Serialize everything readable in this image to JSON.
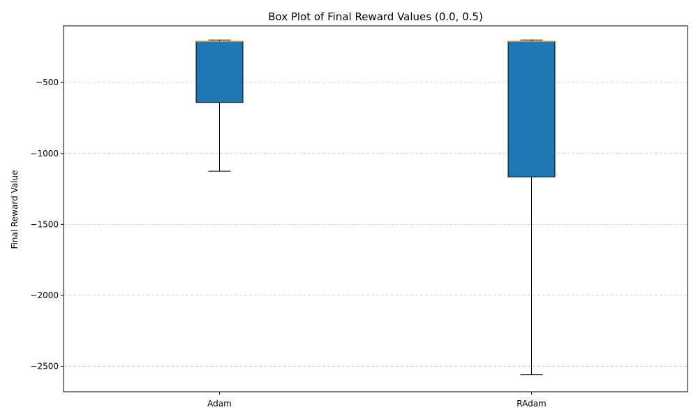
{
  "chart_data": {
    "type": "box",
    "title": "Box Plot of Final Reward Values (0.0, 0.5)",
    "xlabel": "",
    "ylabel": "Final Reward Value",
    "categories": [
      "Adam",
      "RAdam"
    ],
    "boxes": [
      {
        "category": "Adam",
        "whisker_low": -1125,
        "q1": -640,
        "median": -210,
        "q3": -210,
        "whisker_high": -200
      },
      {
        "category": "RAdam",
        "whisker_low": -2560,
        "q1": -1165,
        "median": -210,
        "q3": -210,
        "whisker_high": -200
      }
    ],
    "ylim": [
      -2680,
      -100
    ],
    "yticks": [
      -500,
      -1000,
      -1500,
      -2000,
      -2500
    ],
    "ytick_labels": [
      "−500",
      "−1000",
      "−1500",
      "−2000",
      "−2500"
    ],
    "grid": {
      "y": true,
      "x": false,
      "style": "dashed"
    },
    "colors": {
      "box_fill": "#1f77b4",
      "median": "#ff7f0e",
      "grid": "#c8c8c8",
      "edge": "#000000"
    }
  }
}
